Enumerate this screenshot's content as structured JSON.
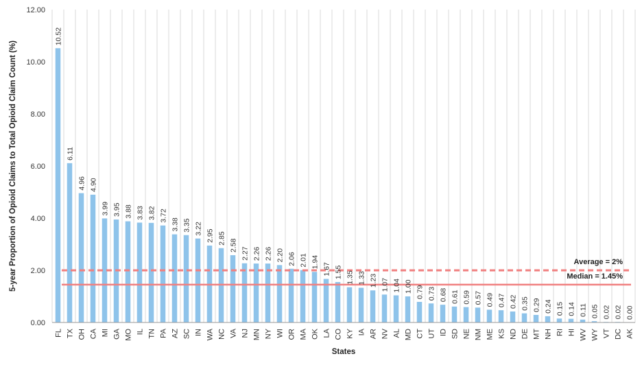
{
  "chart_data": {
    "type": "bar",
    "xlabel": "States",
    "ylabel": "5-year Proportion  of Opioid Claims to Total Opioid Claim Count (%)",
    "ylim": [
      0,
      12
    ],
    "yticks": [
      "0.00",
      "2.00",
      "4.00",
      "6.00",
      "8.00",
      "10.00",
      "12.00"
    ],
    "grid": "vertical",
    "categories": [
      "FL",
      "TX",
      "OH",
      "CA",
      "MI",
      "GA",
      "MO",
      "IL",
      "TN",
      "PA",
      "AZ",
      "SC",
      "IN",
      "WA",
      "NC",
      "VA",
      "NJ",
      "MN",
      "NY",
      "WI",
      "OR",
      "MA",
      "OK",
      "LA",
      "CO",
      "KY",
      "IA",
      "AR",
      "NV",
      "AL",
      "MD",
      "CT",
      "UT",
      "ID",
      "SD",
      "NE",
      "NM",
      "ME",
      "KS",
      "ND",
      "DE",
      "MT",
      "NH",
      "RI",
      "HI",
      "WV",
      "WY",
      "VT",
      "DC",
      "AK"
    ],
    "values": [
      10.52,
      6.11,
      4.96,
      4.9,
      3.99,
      3.95,
      3.88,
      3.83,
      3.82,
      3.72,
      3.38,
      3.35,
      3.22,
      2.95,
      2.85,
      2.58,
      2.27,
      2.26,
      2.26,
      2.2,
      2.06,
      2.01,
      1.94,
      1.67,
      1.55,
      1.35,
      1.33,
      1.23,
      1.07,
      1.04,
      1.0,
      0.79,
      0.73,
      0.68,
      0.61,
      0.59,
      0.57,
      0.49,
      0.47,
      0.42,
      0.35,
      0.29,
      0.24,
      0.15,
      0.14,
      0.11,
      0.05,
      0.02,
      0.02,
      0.0
    ],
    "value_labels": [
      "10.52",
      "6.11",
      "4.96",
      "4.90",
      "3.99",
      "3.95",
      "3.88",
      "3.83",
      "3.82",
      "3.72",
      "3.38",
      "3.35",
      "3.22",
      "2.95",
      "2.85",
      "2.58",
      "2.27",
      "2.26",
      "2.26",
      "2.20",
      "2.06",
      "2.01",
      "1.94",
      "1.67",
      "1.55",
      "1.35",
      "1.33",
      "1.23",
      "1.07",
      "1.04",
      "1.00",
      "0.79",
      "0.73",
      "0.68",
      "0.61",
      "0.59",
      "0.57",
      "0.49",
      "0.47",
      "0.42",
      "0.35",
      "0.29",
      "0.24",
      "0.15",
      "0.14",
      "0.11",
      "0.05",
      "0.02",
      "0.02",
      "0.00"
    ],
    "reference_lines": [
      {
        "label": "Average = 2%",
        "value": 2.0,
        "style": "dashed"
      },
      {
        "label": "Median = 1.45%",
        "value": 1.45,
        "style": "solid"
      }
    ],
    "colors": {
      "bar": "#8ec3ea",
      "reference": "#f07f7f",
      "grid": "#d9d9d9",
      "axis": "#999999"
    }
  }
}
